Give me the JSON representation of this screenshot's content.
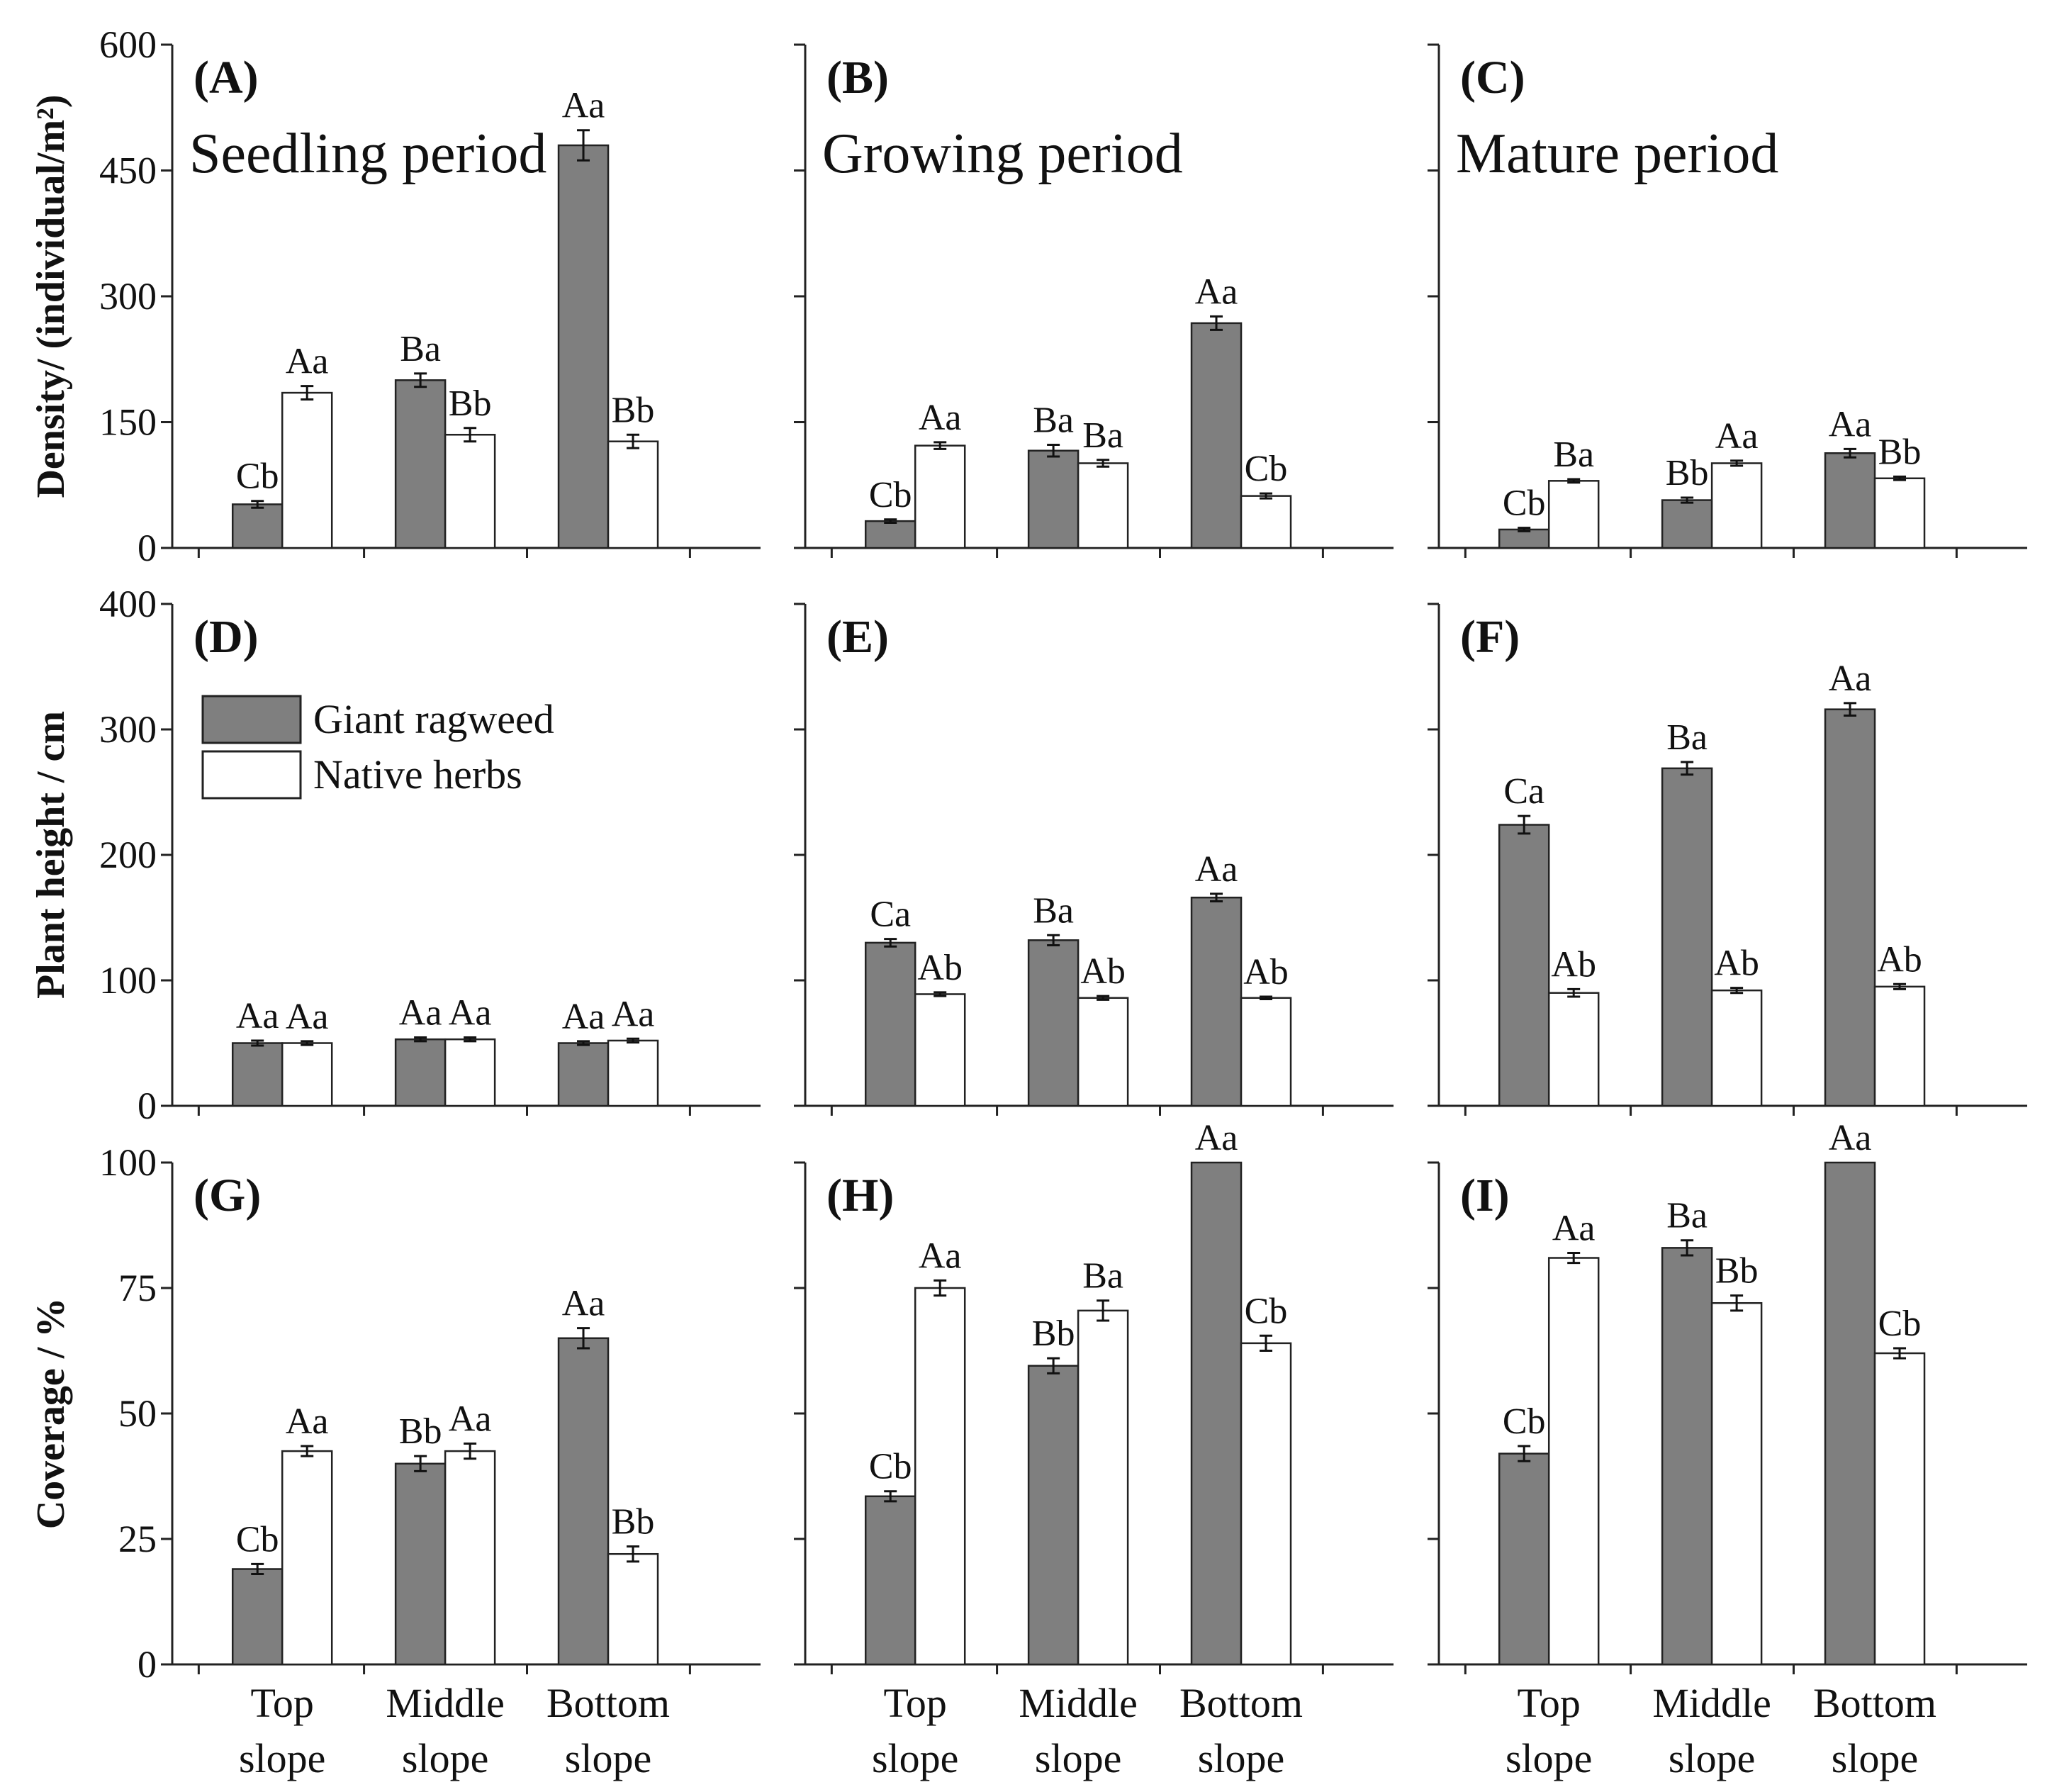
{
  "colors": {
    "giant": "#7f7f7f",
    "native": "#ffffff",
    "stroke": "#222222"
  },
  "legend": {
    "giant": "Giant ragweed",
    "native": "Native herbs"
  },
  "categories": [
    [
      "Top",
      "slope"
    ],
    [
      "Middle",
      "slope"
    ],
    [
      "Bottom",
      "slope"
    ]
  ],
  "periods": [
    "Seedling period",
    "Growing period",
    "Mature period"
  ],
  "rows": [
    {
      "ylabel": "Density/ (individual/m²)",
      "ylim": [
        0,
        600
      ],
      "ticks": [
        0,
        150,
        300,
        450,
        600
      ]
    },
    {
      "ylabel": "Plant height / cm",
      "ylim": [
        0,
        400
      ],
      "ticks": [
        0,
        100,
        200,
        300,
        400
      ]
    },
    {
      "ylabel": "Coverage / %",
      "ylim": [
        0,
        100
      ],
      "ticks": [
        0,
        25,
        50,
        75,
        100
      ]
    }
  ],
  "chart_data": [
    {
      "type": "bar",
      "panel": "(A)",
      "title": "Seedling period",
      "categories": [
        "Top slope",
        "Middle slope",
        "Bottom slope"
      ],
      "ylabel": "Density/ (individual/m²)",
      "ylim": [
        0,
        600
      ],
      "series": [
        {
          "name": "Giant ragweed",
          "values": [
            52,
            200,
            480
          ],
          "errors": [
            4,
            8,
            18
          ],
          "labels": [
            "Cb",
            "Ba",
            "Aa"
          ]
        },
        {
          "name": "Native herbs",
          "values": [
            185,
            135,
            127
          ],
          "errors": [
            8,
            8,
            8
          ],
          "labels": [
            "Aa",
            "Bb",
            "Bb"
          ]
        }
      ]
    },
    {
      "type": "bar",
      "panel": "(B)",
      "title": "Growing period",
      "categories": [
        "Top slope",
        "Middle slope",
        "Bottom slope"
      ],
      "ylabel": "Density/ (individual/m²)",
      "ylim": [
        0,
        600
      ],
      "series": [
        {
          "name": "Giant ragweed",
          "values": [
            32,
            116,
            268
          ],
          "errors": [
            2,
            7,
            8
          ],
          "labels": [
            "Cb",
            "Ba",
            "Aa"
          ]
        },
        {
          "name": "Native herbs",
          "values": [
            122,
            101,
            62
          ],
          "errors": [
            4,
            4,
            3
          ],
          "labels": [
            "Aa",
            "Ba",
            "Cb"
          ]
        }
      ]
    },
    {
      "type": "bar",
      "panel": "(C)",
      "title": "Mature period",
      "categories": [
        "Top slope",
        "Middle slope",
        "Bottom slope"
      ],
      "ylabel": "Density/ (individual/m²)",
      "ylim": [
        0,
        600
      ],
      "series": [
        {
          "name": "Giant ragweed",
          "values": [
            22,
            57,
            113
          ],
          "errors": [
            2,
            3,
            5
          ],
          "labels": [
            "Cb",
            "Bb",
            "Aa"
          ]
        },
        {
          "name": "Native herbs",
          "values": [
            80,
            101,
            83
          ],
          "errors": [
            2,
            3,
            2
          ],
          "labels": [
            "Ba",
            "Aa",
            "Bb"
          ]
        }
      ]
    },
    {
      "type": "bar",
      "panel": "(D)",
      "categories": [
        "Top slope",
        "Middle slope",
        "Bottom slope"
      ],
      "ylabel": "Plant height / cm",
      "ylim": [
        0,
        400
      ],
      "series": [
        {
          "name": "Giant ragweed",
          "values": [
            50,
            53,
            50
          ],
          "errors": [
            2,
            1.5,
            1.5
          ],
          "labels": [
            "Aa",
            "Aa",
            "Aa"
          ]
        },
        {
          "name": "Native herbs",
          "values": [
            50,
            53,
            52
          ],
          "errors": [
            1.5,
            1.5,
            1.5
          ],
          "labels": [
            "Aa",
            "Aa",
            "Aa"
          ]
        }
      ]
    },
    {
      "type": "bar",
      "panel": "(E)",
      "categories": [
        "Top slope",
        "Middle slope",
        "Bottom slope"
      ],
      "ylabel": "Plant height / cm",
      "ylim": [
        0,
        400
      ],
      "series": [
        {
          "name": "Giant ragweed",
          "values": [
            130,
            132,
            166
          ],
          "errors": [
            3,
            4,
            3
          ],
          "labels": [
            "Ca",
            "Ba",
            "Aa"
          ]
        },
        {
          "name": "Native herbs",
          "values": [
            89,
            86,
            86
          ],
          "errors": [
            1.5,
            1.5,
            1
          ],
          "labels": [
            "Ab",
            "Ab",
            "Ab"
          ]
        }
      ]
    },
    {
      "type": "bar",
      "panel": "(F)",
      "categories": [
        "Top slope",
        "Middle slope",
        "Bottom slope"
      ],
      "ylabel": "Plant height / cm",
      "ylim": [
        0,
        400
      ],
      "series": [
        {
          "name": "Giant ragweed",
          "values": [
            224,
            269,
            316
          ],
          "errors": [
            7,
            5,
            5
          ],
          "labels": [
            "Ca",
            "Ba",
            "Aa"
          ]
        },
        {
          "name": "Native herbs",
          "values": [
            90,
            92,
            95
          ],
          "errors": [
            3,
            2,
            2
          ],
          "labels": [
            "Ab",
            "Ab",
            "Ab"
          ]
        }
      ]
    },
    {
      "type": "bar",
      "panel": "(G)",
      "categories": [
        "Top slope",
        "Middle slope",
        "Bottom slope"
      ],
      "ylabel": "Coverage / %",
      "ylim": [
        0,
        100
      ],
      "series": [
        {
          "name": "Giant ragweed",
          "values": [
            19,
            40,
            65
          ],
          "errors": [
            1,
            1.5,
            2
          ],
          "labels": [
            "Cb",
            "Bb",
            "Aa"
          ]
        },
        {
          "name": "Native herbs",
          "values": [
            42.5,
            42.5,
            22
          ],
          "errors": [
            1,
            1.5,
            1.5
          ],
          "labels": [
            "Aa",
            "Aa",
            "Bb"
          ]
        }
      ]
    },
    {
      "type": "bar",
      "panel": "(H)",
      "categories": [
        "Top slope",
        "Middle slope",
        "Bottom slope"
      ],
      "ylabel": "Coverage / %",
      "ylim": [
        0,
        100
      ],
      "series": [
        {
          "name": "Giant ragweed",
          "values": [
            33.5,
            59.5,
            100
          ],
          "errors": [
            1,
            1.5,
            0
          ],
          "labels": [
            "Cb",
            "Bb",
            "Aa"
          ]
        },
        {
          "name": "Native herbs",
          "values": [
            75,
            70.5,
            64
          ],
          "errors": [
            1.5,
            2,
            1.5
          ],
          "labels": [
            "Aa",
            "Ba",
            "Cb"
          ]
        }
      ]
    },
    {
      "type": "bar",
      "panel": "(I)",
      "categories": [
        "Top slope",
        "Middle slope",
        "Bottom slope"
      ],
      "ylabel": "Coverage / %",
      "ylim": [
        0,
        100
      ],
      "series": [
        {
          "name": "Giant ragweed",
          "values": [
            42,
            83,
            100
          ],
          "errors": [
            1.5,
            1.5,
            0
          ],
          "labels": [
            "Cb",
            "Ba",
            "Aa"
          ]
        },
        {
          "name": "Native herbs",
          "values": [
            81,
            72,
            62
          ],
          "errors": [
            1,
            1.5,
            1
          ],
          "labels": [
            "Aa",
            "Bb",
            "Cb"
          ]
        }
      ]
    }
  ]
}
